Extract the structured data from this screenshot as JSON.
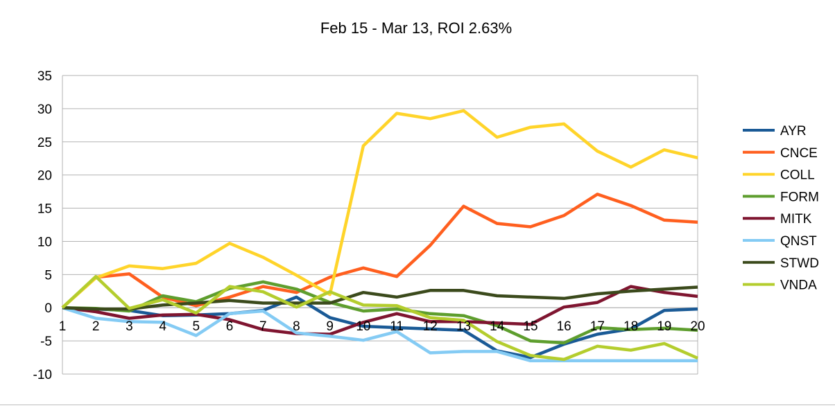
{
  "chart_data": {
    "type": "line",
    "title": "Feb 15 - Mar 13, ROI 2.63%",
    "xlabel": "",
    "ylabel": "",
    "x": [
      1,
      2,
      3,
      4,
      5,
      6,
      7,
      8,
      9,
      10,
      11,
      12,
      13,
      14,
      15,
      16,
      17,
      18,
      19,
      20
    ],
    "ylim": [
      -10,
      35
    ],
    "yticks": [
      -10,
      -5,
      0,
      5,
      10,
      15,
      20,
      25,
      30,
      35
    ],
    "grid": true,
    "legend_position": "right",
    "series": [
      {
        "name": "AYR",
        "color": "#1a5a96",
        "values": [
          0,
          -0.2,
          -0.4,
          -1.2,
          -1.1,
          -0.9,
          -0.4,
          1.6,
          -1.5,
          -2.8,
          -3.0,
          -3.2,
          -3.4,
          -6.5,
          -7.5,
          -5.5,
          -4.0,
          -3.2,
          -0.4,
          -0.2
        ]
      },
      {
        "name": "CNCE",
        "color": "#ff5f1f",
        "values": [
          0,
          4.6,
          5.1,
          1.6,
          0.3,
          1.6,
          3.2,
          2.3,
          4.6,
          6.0,
          4.7,
          9.4,
          15.3,
          12.7,
          12.2,
          13.9,
          17.1,
          15.4,
          13.2,
          12.9
        ]
      },
      {
        "name": "COLL",
        "color": "#ffd42a",
        "values": [
          0,
          4.5,
          6.3,
          5.9,
          6.7,
          9.7,
          7.6,
          4.9,
          2.0,
          24.4,
          29.3,
          28.5,
          29.7,
          25.7,
          27.2,
          27.7,
          23.6,
          21.2,
          23.8,
          22.6
        ]
      },
      {
        "name": "FORM",
        "color": "#5e9e2e",
        "values": [
          0,
          -0.1,
          -0.5,
          1.8,
          0.9,
          2.9,
          3.9,
          2.8,
          0.8,
          -0.5,
          -0.2,
          -0.9,
          -1.2,
          -2.7,
          -5.0,
          -5.3,
          -3.0,
          -3.3,
          -3.1,
          -3.4
        ]
      },
      {
        "name": "MITK",
        "color": "#7f1530",
        "values": [
          0,
          -0.6,
          -1.6,
          -1.1,
          -1.0,
          -1.8,
          -3.3,
          -3.9,
          -4.0,
          -2.2,
          -0.9,
          -2.1,
          -2.1,
          -2.3,
          -2.5,
          0.1,
          0.8,
          3.2,
          2.3,
          1.7
        ]
      },
      {
        "name": "QNST",
        "color": "#84cbf4",
        "values": [
          0,
          -1.6,
          -2.1,
          -2.2,
          -4.2,
          -0.9,
          -0.5,
          -3.8,
          -4.3,
          -4.9,
          -3.6,
          -6.8,
          -6.6,
          -6.6,
          -8.0,
          -8.0,
          -8.0,
          -8.0,
          -8.0,
          -8.0
        ]
      },
      {
        "name": "STWD",
        "color": "#3b4a1c",
        "values": [
          0,
          -0.2,
          -0.2,
          0.4,
          0.7,
          1.1,
          0.7,
          0.7,
          0.7,
          2.3,
          1.6,
          2.6,
          2.6,
          1.8,
          1.6,
          1.4,
          2.1,
          2.5,
          2.8,
          3.1
        ]
      },
      {
        "name": "VNDA",
        "color": "#b4cd2e",
        "values": [
          0,
          4.7,
          -0.1,
          1.2,
          -0.8,
          3.2,
          2.4,
          0.1,
          2.4,
          0.4,
          0.3,
          -1.5,
          -1.9,
          -5.1,
          -7.2,
          -7.8,
          -5.8,
          -6.4,
          -5.4,
          -7.6
        ]
      }
    ]
  }
}
